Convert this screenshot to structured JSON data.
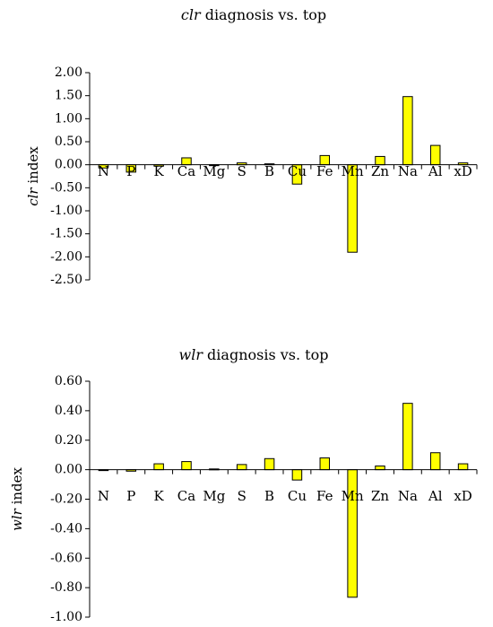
{
  "chart_data": [
    {
      "type": "bar",
      "title_prefix": "clr",
      "title_suffix": " diagnosis vs. top",
      "ylabel_prefix": "clr",
      "ylabel_suffix": " index",
      "categories": [
        "N",
        "P",
        "K",
        "Ca",
        "Mg",
        "S",
        "B",
        "Cu",
        "Fe",
        "Mn",
        "Zn",
        "Na",
        "Al",
        "xD"
      ],
      "values": [
        -0.07,
        -0.16,
        -0.03,
        0.15,
        -0.01,
        0.04,
        0.02,
        -0.42,
        0.2,
        -1.9,
        0.18,
        1.48,
        0.42,
        0.04
      ],
      "ylim": [
        -2.5,
        2.0
      ],
      "yticks": [
        2.0,
        1.5,
        1.0,
        0.5,
        0.0,
        -0.5,
        -1.0,
        -1.5,
        -2.0,
        -2.5
      ],
      "ytick_labels": [
        "2.00",
        "1.50",
        "1.00",
        "0.50",
        "0.00",
        "-0.50",
        "-1.00",
        "-1.50",
        "-2.00",
        "-2.50"
      ],
      "bar_color": "#ffff00",
      "grid": false
    },
    {
      "type": "bar",
      "title_prefix": "wlr",
      "title_suffix": " diagnosis vs. top",
      "ylabel_prefix": "wlr",
      "ylabel_suffix": " index",
      "categories": [
        "N",
        "P",
        "K",
        "Ca",
        "Mg",
        "S",
        "B",
        "Cu",
        "Fe",
        "Mn",
        "Zn",
        "Na",
        "Al",
        "xD"
      ],
      "values": [
        -0.005,
        -0.01,
        0.04,
        0.055,
        0.005,
        0.035,
        0.075,
        -0.07,
        0.08,
        -0.865,
        0.025,
        0.45,
        0.115,
        0.04
      ],
      "ylim": [
        -1.0,
        0.6
      ],
      "yticks": [
        0.6,
        0.4,
        0.2,
        0.0,
        -0.2,
        -0.4,
        -0.6,
        -0.8,
        -1.0
      ],
      "ytick_labels": [
        "0.60",
        "0.40",
        "0.20",
        "0.00",
        "-0.20",
        "-0.40",
        "-0.60",
        "-0.80",
        "-1.00"
      ],
      "bar_color": "#ffff00",
      "grid": false
    }
  ]
}
